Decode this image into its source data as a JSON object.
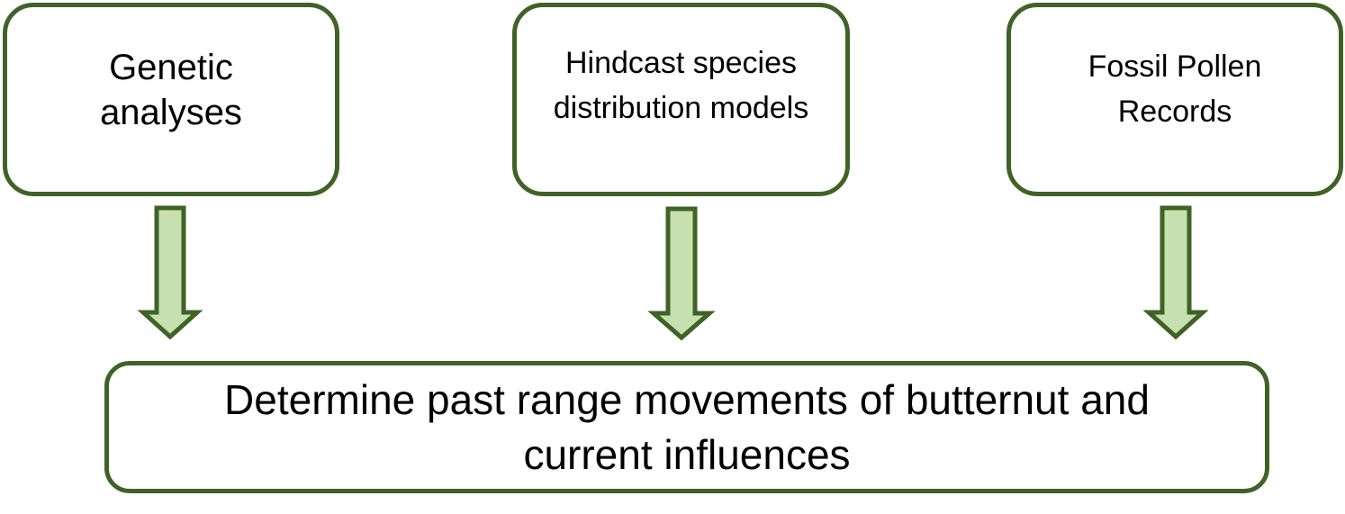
{
  "diagram": {
    "sources": [
      {
        "id": "genetic",
        "label": "Genetic analyses"
      },
      {
        "id": "hindcast",
        "label": "Hindcast species distribution models"
      },
      {
        "id": "fossil",
        "label": "Fossil Pollen Records"
      }
    ],
    "target": {
      "label": "Determine past range movements of butternut and current influences"
    },
    "colors": {
      "border": "#3f6327",
      "arrow_fill": "#c8e0b0",
      "background": "#ffffff",
      "text": "#000000"
    }
  }
}
